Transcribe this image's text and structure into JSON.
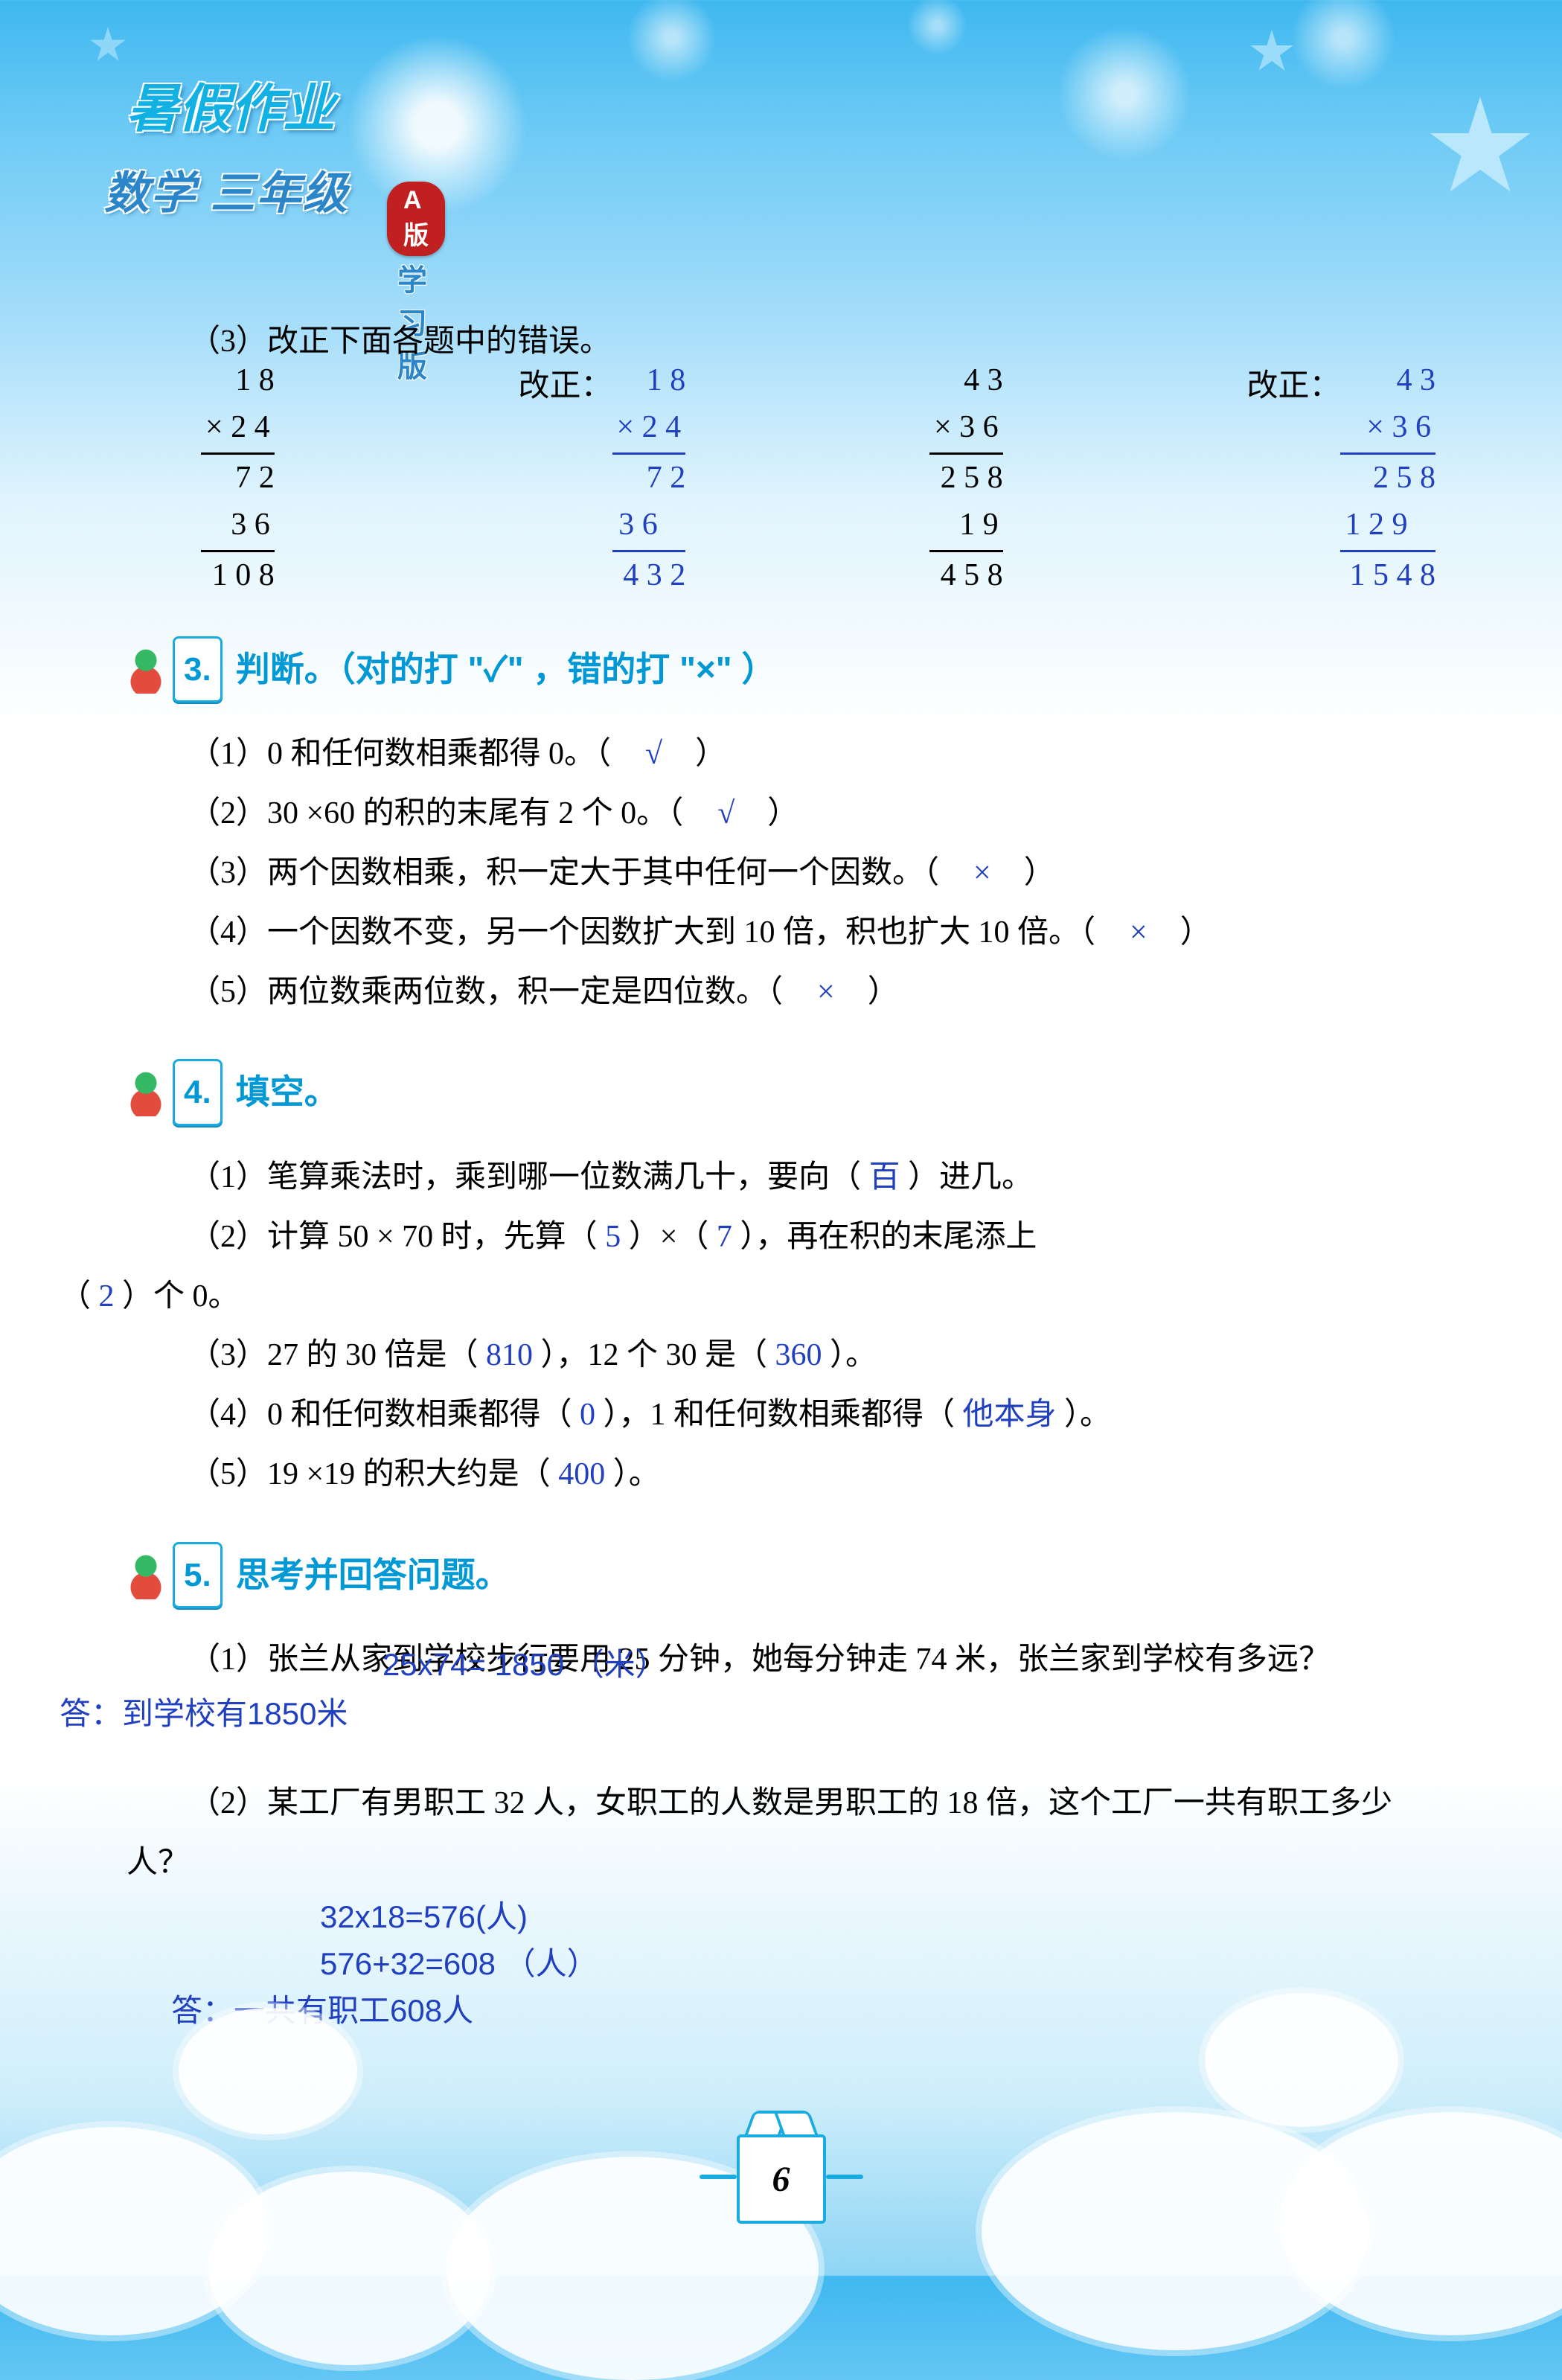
{
  "header": {
    "subject": "数学  三年级",
    "title": "暑假作业",
    "badge": "A版",
    "badge_text": "学习版"
  },
  "q2_3": {
    "prompt": "（3）改正下面各题中的错误。",
    "label": "改正：",
    "wrong1": {
      "a": "1 8",
      "op": "× 2 4",
      "p1": "7 2",
      "p2": "3 6",
      "res": "1 0 8"
    },
    "corr1": {
      "a": "1 8",
      "op": "×   2 4",
      "p1": "7 2",
      "p2": "3 6   ",
      "res": "4 3 2"
    },
    "wrong2": {
      "a": "4 3",
      "op": "× 3 6",
      "p1": "2 5 8",
      "p2": "1 9",
      "res": "4 5 8"
    },
    "corr2": {
      "a": "4 3",
      "op": "×  3 6",
      "p1": "2 5 8",
      "p2": "1 2 9   ",
      "res": "1 5 4 8"
    }
  },
  "section3": {
    "num": "3.",
    "title": "判断。（对的打 \"✓\" ，错的打 \"×\" ）",
    "items": [
      {
        "q": "（1）0 和任何数相乘都得 0。",
        "ans": "√"
      },
      {
        "q": "（2）30 ×60 的积的末尾有 2 个 0。",
        "ans": "√"
      },
      {
        "q": "（3）两个因数相乘，积一定大于其中任何一个因数。",
        "ans": "×"
      },
      {
        "q": "（4）一个因数不变，另一个因数扩大到 10 倍，积也扩大 10 倍。",
        "ans": "×"
      },
      {
        "q": "（5）两位数乘两位数，积一定是四位数。",
        "ans": "×"
      }
    ]
  },
  "section4": {
    "num": "4.",
    "title": "填空。",
    "q1": {
      "pre": "（1）笔算乘法时，乘到哪一位数满几十，要向（",
      "a1": "百",
      "post": "）进几。"
    },
    "q2": {
      "pre": "（2）计算 50 × 70 时，先算（",
      "a1": "5",
      "mid1": "）×（",
      "a2": "7",
      "mid2": "），再在积的末尾添上",
      "line2pre": "（",
      "a3": "2",
      "line2post": "）个 0。"
    },
    "q3": {
      "pre": "（3）27 的 30 倍是（",
      "a1": "810",
      "mid": "），12 个 30 是（",
      "a2": "360",
      "post": "）。"
    },
    "q4": {
      "pre": "（4）0 和任何数相乘都得（",
      "a1": "0",
      "mid": "），1 和任何数相乘都得（",
      "a2": "他本身",
      "post": "）。"
    },
    "q5": {
      "pre": "（5）19 ×19 的积大约是（",
      "a1": "400",
      "post": "）。"
    }
  },
  "section5": {
    "num": "5.",
    "title": "思考并回答问题。",
    "q1": {
      "text": "（1）张兰从家到学校步行要用 25 分钟，她每分钟走 74 米，张兰家到学校有多远？",
      "calc": "25x74= 1850 （米）",
      "answer": "答：到学校有1850米"
    },
    "q2": {
      "text": "（2）某工厂有男职工 32 人，女职工的人数是男职工的 18 倍，这个工厂一共有职工多少人？",
      "calc1": "32x18=576(人)",
      "calc2": "576+32=608 （人）",
      "answer": "答：一共有职工608人"
    }
  },
  "page_number": "6",
  "colors": {
    "answer_blue": "#2040c0",
    "theme_cyan": "#1aabe0",
    "heading_blue": "#0198d6",
    "badge_red": "#c02020"
  }
}
